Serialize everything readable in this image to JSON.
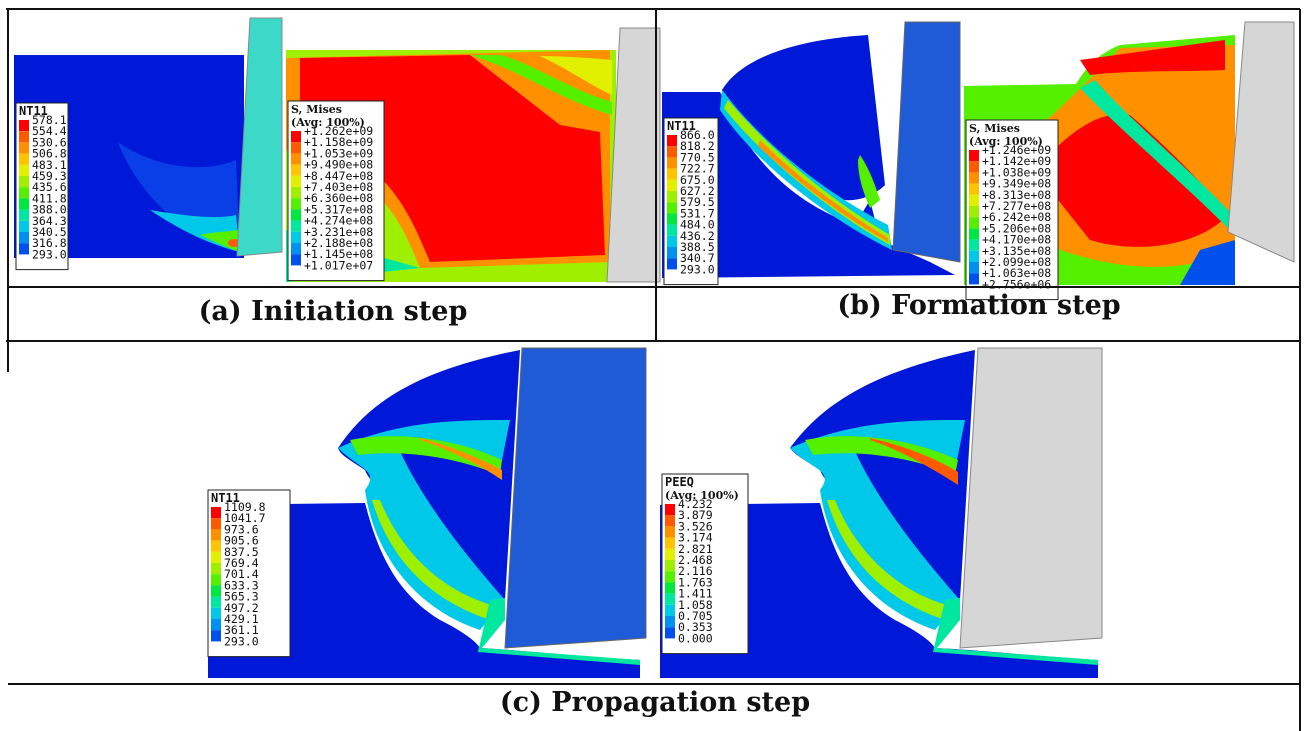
{
  "panels": {
    "a": {
      "caption": "(a) Initiation step"
    },
    "b": {
      "caption": "(b) Formation step"
    },
    "c": {
      "caption": "(c) Propagation step"
    }
  },
  "legends": {
    "a_temp": {
      "title": "NT11",
      "values": [
        "578.1",
        "554.4",
        "530.6",
        "506.8",
        "483.1",
        "459.3",
        "435.6",
        "411.8",
        "388.0",
        "364.3",
        "340.5",
        "316.8",
        "293.0"
      ]
    },
    "a_stress": {
      "title": "S, Mises",
      "subtitle": "(Avg: 100%)",
      "values": [
        "+1.262e+09",
        "+1.158e+09",
        "+1.053e+09",
        "+9.490e+08",
        "+8.447e+08",
        "+7.403e+08",
        "+6.360e+08",
        "+5.317e+08",
        "+4.274e+08",
        "+3.231e+08",
        "+2.188e+08",
        "+1.145e+08",
        "+1.017e+07"
      ]
    },
    "b_temp": {
      "title": "NT11",
      "values": [
        "866.0",
        "818.2",
        "770.5",
        "722.7",
        "675.0",
        "627.2",
        "579.5",
        "531.7",
        "484.0",
        "436.2",
        "388.5",
        "340.7",
        "293.0"
      ]
    },
    "b_stress": {
      "title": "S, Mises",
      "subtitle": "(Avg: 100%)",
      "values": [
        "+1.246e+09",
        "+1.142e+09",
        "+1.038e+09",
        "+9.349e+08",
        "+8.313e+08",
        "+7.277e+08",
        "+6.242e+08",
        "+5.206e+08",
        "+4.170e+08",
        "+3.135e+08",
        "+2.099e+08",
        "+1.063e+08",
        "+2.756e+06"
      ]
    },
    "c_temp": {
      "title": "NT11",
      "values": [
        "1109.8",
        "1041.7",
        "973.6",
        "905.6",
        "837.5",
        "769.4",
        "701.4",
        "633.3",
        "565.3",
        "497.2",
        "429.1",
        "361.1",
        "293.0"
      ]
    },
    "c_peeq": {
      "title": "PEEQ",
      "subtitle": "(Avg: 100%)",
      "values": [
        "4.232",
        "3.879",
        "3.526",
        "3.174",
        "2.821",
        "2.468",
        "2.116",
        "1.763",
        "1.411",
        "1.058",
        "0.705",
        "0.353",
        "0.000"
      ]
    }
  },
  "colors": {
    "scale": [
      "#ff0000",
      "#ff5a00",
      "#ff9100",
      "#ffc400",
      "#e0f000",
      "#9ef000",
      "#54f000",
      "#00e840",
      "#00e8a0",
      "#00c8e8",
      "#0090f0",
      "#0050ee",
      "#0018d8"
    ],
    "tool_blue": "#1f5bd6",
    "tool_cyan": "#3cd8c8",
    "tool_gray": "#d6d6d6"
  }
}
